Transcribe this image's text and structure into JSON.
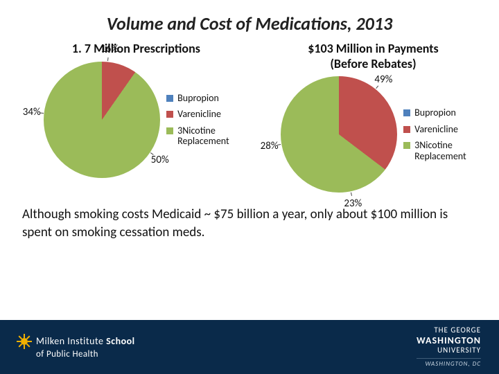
{
  "title": "Volume and Cost of Medications, 2013",
  "colors": {
    "bupropion": "#4f81bd",
    "varenicline": "#c0504d",
    "nicotine": "#9bbb59",
    "slice_border": "#ffffff",
    "text": "#111111",
    "footer_bg": "#0a2a4a"
  },
  "charts": [
    {
      "key": "prescriptions",
      "title": "1. 7 Million Prescriptions",
      "type": "pie",
      "start_angle_deg": -145,
      "slices": [
        {
          "label": "Bupropion",
          "value": 34,
          "show": "34%",
          "color_key": "bupropion"
        },
        {
          "label": "Varenicline",
          "value": 16,
          "show": "16%",
          "color_key": "varenicline"
        },
        {
          "label": "Nicotine\nReplacement",
          "value": 50,
          "show": "50%",
          "color_key": "nicotine"
        }
      ],
      "label_radius": 102,
      "legend": [
        {
          "label": "Bupropion",
          "color_key": "bupropion"
        },
        {
          "label": "Varenicline",
          "color_key": "varenicline"
        },
        {
          "label": "Nicotine\nReplacement",
          "color_key": "nicotine",
          "prefix": "3"
        }
      ]
    },
    {
      "key": "payments",
      "title": "$103 Million in Payments\n(Before Rebates)",
      "type": "pie",
      "start_angle_deg": -150,
      "slices": [
        {
          "label": "Bupropion",
          "value": 28,
          "show": "28%",
          "color_key": "bupropion"
        },
        {
          "label": "Varenicline",
          "value": 49,
          "show": "49%",
          "color_key": "varenicline"
        },
        {
          "label": "Nicotine\nReplacement",
          "value": 23,
          "show": "23%",
          "color_key": "nicotine"
        }
      ],
      "label_radius": 102,
      "legend": [
        {
          "label": "Bupropion",
          "color_key": "bupropion"
        },
        {
          "label": "Varenicline",
          "color_key": "varenicline"
        },
        {
          "label": "Nicotine\nReplacement",
          "color_key": "nicotine",
          "prefix": "3"
        }
      ]
    }
  ],
  "caption": "Although smoking costs Medicaid ~ $75 billion a year,\nonly about $100 million is spent on smoking cessation meds.",
  "footer": {
    "milken_line1_prefix": "Milken Institute ",
    "milken_line1_strong": "School",
    "milken_line2": "of Public Health",
    "gw_line1": "THE GEORGE",
    "gw_line2": "WASHINGTON",
    "gw_line3": "UNIVERSITY",
    "gw_city": "WASHINGTON, DC"
  }
}
